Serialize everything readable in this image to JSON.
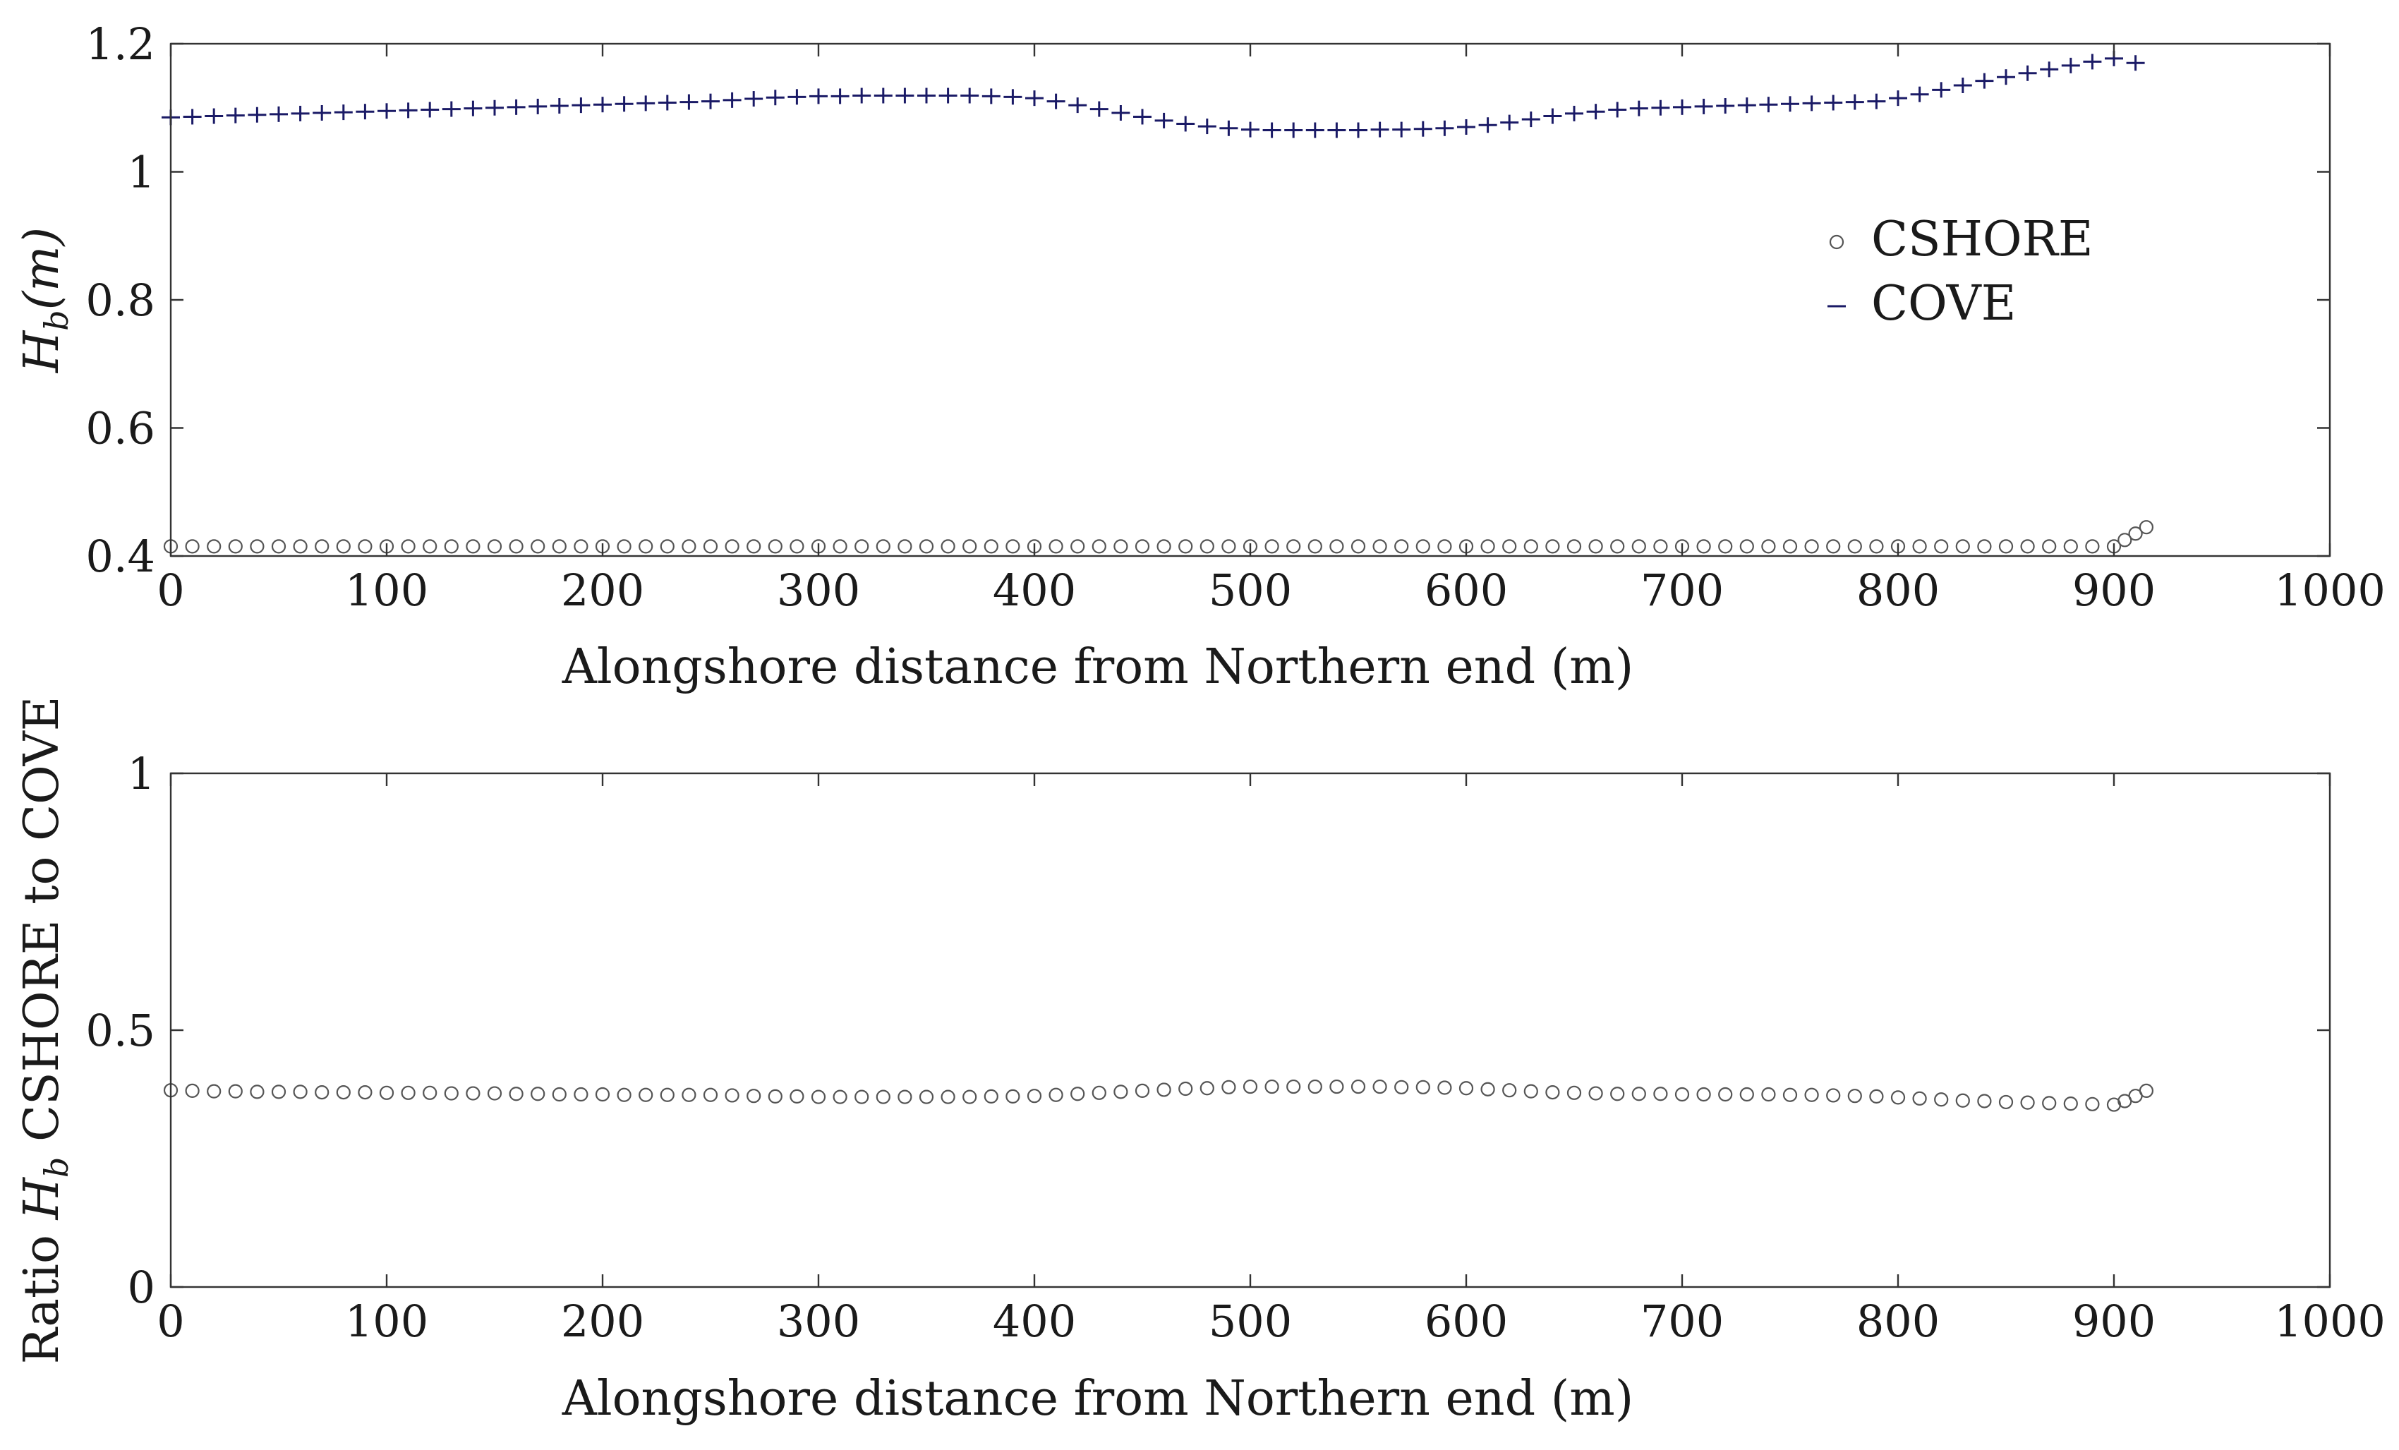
{
  "chart_data": [
    {
      "type": "scatter",
      "xlabel": "Alongshore distance from Northern end (m)",
      "ylabel": {
        "symbol": "H",
        "sub": "b",
        "unit": "(m)"
      },
      "xlim": [
        0,
        1000
      ],
      "ylim": [
        0.4,
        1.2
      ],
      "xticks": [
        0,
        100,
        200,
        300,
        400,
        500,
        600,
        700,
        800,
        900,
        1000
      ],
      "yticks": [
        0.4,
        0.6,
        0.8,
        1.0,
        1.2
      ],
      "xtick_labels": [
        "0",
        "100",
        "200",
        "300",
        "400",
        "500",
        "600",
        "700",
        "800",
        "900",
        "1000"
      ],
      "ytick_labels": [
        "0.4",
        "0.6",
        "0.8",
        "1",
        "1.2"
      ],
      "legend": {
        "placement": "upper-right",
        "entries": [
          "CSHORE",
          "COVE"
        ]
      },
      "grid": false,
      "series": [
        {
          "name": "CSHORE",
          "marker": "circle",
          "color": "#555555",
          "x": [
            0,
            10,
            20,
            30,
            40,
            50,
            60,
            70,
            80,
            90,
            100,
            110,
            120,
            130,
            140,
            150,
            160,
            170,
            180,
            190,
            200,
            210,
            220,
            230,
            240,
            250,
            260,
            270,
            280,
            290,
            300,
            310,
            320,
            330,
            340,
            350,
            360,
            370,
            380,
            390,
            400,
            410,
            420,
            430,
            440,
            450,
            460,
            470,
            480,
            490,
            500,
            510,
            520,
            530,
            540,
            550,
            560,
            570,
            580,
            590,
            600,
            610,
            620,
            630,
            640,
            650,
            660,
            670,
            680,
            690,
            700,
            710,
            720,
            730,
            740,
            750,
            760,
            770,
            780,
            790,
            800,
            810,
            820,
            830,
            840,
            850,
            860,
            870,
            880,
            890,
            900,
            905,
            910,
            915
          ],
          "y": [
            0.415,
            0.415,
            0.415,
            0.415,
            0.415,
            0.415,
            0.415,
            0.415,
            0.415,
            0.415,
            0.415,
            0.415,
            0.415,
            0.415,
            0.415,
            0.415,
            0.415,
            0.415,
            0.415,
            0.415,
            0.415,
            0.415,
            0.415,
            0.415,
            0.415,
            0.415,
            0.415,
            0.415,
            0.415,
            0.415,
            0.415,
            0.415,
            0.415,
            0.415,
            0.415,
            0.415,
            0.415,
            0.415,
            0.415,
            0.415,
            0.415,
            0.415,
            0.415,
            0.415,
            0.415,
            0.415,
            0.415,
            0.415,
            0.415,
            0.415,
            0.415,
            0.415,
            0.415,
            0.415,
            0.415,
            0.415,
            0.415,
            0.415,
            0.415,
            0.415,
            0.415,
            0.415,
            0.415,
            0.415,
            0.415,
            0.415,
            0.415,
            0.415,
            0.415,
            0.415,
            0.415,
            0.415,
            0.415,
            0.415,
            0.415,
            0.415,
            0.415,
            0.415,
            0.415,
            0.415,
            0.415,
            0.415,
            0.415,
            0.415,
            0.415,
            0.415,
            0.415,
            0.415,
            0.415,
            0.415,
            0.415,
            0.425,
            0.435,
            0.445
          ]
        },
        {
          "name": "COVE",
          "marker": "plus",
          "color": "#1a1a66",
          "x": [
            0,
            10,
            20,
            30,
            40,
            50,
            60,
            70,
            80,
            90,
            100,
            110,
            120,
            130,
            140,
            150,
            160,
            170,
            180,
            190,
            200,
            210,
            220,
            230,
            240,
            250,
            260,
            270,
            280,
            290,
            300,
            310,
            320,
            330,
            340,
            350,
            360,
            370,
            380,
            390,
            400,
            410,
            420,
            430,
            440,
            450,
            460,
            470,
            480,
            490,
            500,
            510,
            520,
            530,
            540,
            550,
            560,
            570,
            580,
            590,
            600,
            610,
            620,
            630,
            640,
            650,
            660,
            670,
            680,
            690,
            700,
            710,
            720,
            730,
            740,
            750,
            760,
            770,
            780,
            790,
            800,
            810,
            820,
            830,
            840,
            850,
            860,
            870,
            880,
            890,
            900,
            910
          ],
          "y": [
            1.085,
            1.086,
            1.087,
            1.088,
            1.089,
            1.09,
            1.091,
            1.092,
            1.093,
            1.094,
            1.095,
            1.096,
            1.097,
            1.098,
            1.099,
            1.1,
            1.101,
            1.102,
            1.103,
            1.104,
            1.105,
            1.106,
            1.107,
            1.108,
            1.109,
            1.11,
            1.112,
            1.114,
            1.116,
            1.117,
            1.118,
            1.118,
            1.119,
            1.119,
            1.119,
            1.119,
            1.119,
            1.119,
            1.118,
            1.117,
            1.115,
            1.11,
            1.104,
            1.098,
            1.092,
            1.086,
            1.08,
            1.075,
            1.071,
            1.068,
            1.066,
            1.065,
            1.065,
            1.065,
            1.065,
            1.065,
            1.066,
            1.066,
            1.067,
            1.068,
            1.07,
            1.073,
            1.077,
            1.082,
            1.087,
            1.091,
            1.094,
            1.097,
            1.099,
            1.1,
            1.101,
            1.102,
            1.103,
            1.104,
            1.105,
            1.106,
            1.107,
            1.108,
            1.109,
            1.11,
            1.115,
            1.121,
            1.128,
            1.135,
            1.142,
            1.148,
            1.154,
            1.16,
            1.166,
            1.172,
            1.177,
            1.17
          ]
        }
      ]
    },
    {
      "type": "scatter",
      "xlabel": "Alongshore distance from Northern end (m)",
      "ylabel": {
        "prefix": "Ratio",
        "symbol": "H",
        "sub": "b",
        "suffix": "CSHORE to COVE"
      },
      "xlim": [
        0,
        1000
      ],
      "ylim": [
        0,
        1
      ],
      "xticks": [
        0,
        100,
        200,
        300,
        400,
        500,
        600,
        700,
        800,
        900,
        1000
      ],
      "yticks": [
        0,
        0.5,
        1
      ],
      "xtick_labels": [
        "0",
        "100",
        "200",
        "300",
        "400",
        "500",
        "600",
        "700",
        "800",
        "900",
        "1000"
      ],
      "ytick_labels": [
        "0",
        "0.5",
        "1"
      ],
      "grid": false,
      "series": [
        {
          "marker": "circle",
          "color": "#555555",
          "x": [
            0,
            10,
            20,
            30,
            40,
            50,
            60,
            70,
            80,
            90,
            100,
            110,
            120,
            130,
            140,
            150,
            160,
            170,
            180,
            190,
            200,
            210,
            220,
            230,
            240,
            250,
            260,
            270,
            280,
            290,
            300,
            310,
            320,
            330,
            340,
            350,
            360,
            370,
            380,
            390,
            400,
            410,
            420,
            430,
            440,
            450,
            460,
            470,
            480,
            490,
            500,
            510,
            520,
            530,
            540,
            550,
            560,
            570,
            580,
            590,
            600,
            610,
            620,
            630,
            640,
            650,
            660,
            670,
            680,
            690,
            700,
            710,
            720,
            730,
            740,
            750,
            760,
            770,
            780,
            790,
            800,
            810,
            820,
            830,
            840,
            850,
            860,
            870,
            880,
            890,
            900,
            905,
            910,
            915
          ],
          "y": [
            0.383,
            0.382,
            0.381,
            0.381,
            0.38,
            0.38,
            0.38,
            0.379,
            0.379,
            0.379,
            0.378,
            0.378,
            0.378,
            0.377,
            0.377,
            0.377,
            0.376,
            0.376,
            0.375,
            0.375,
            0.375,
            0.374,
            0.374,
            0.374,
            0.374,
            0.374,
            0.373,
            0.372,
            0.371,
            0.371,
            0.37,
            0.37,
            0.37,
            0.37,
            0.37,
            0.37,
            0.37,
            0.37,
            0.371,
            0.371,
            0.372,
            0.374,
            0.376,
            0.378,
            0.38,
            0.382,
            0.384,
            0.386,
            0.387,
            0.389,
            0.39,
            0.39,
            0.39,
            0.39,
            0.39,
            0.39,
            0.39,
            0.389,
            0.389,
            0.388,
            0.387,
            0.385,
            0.383,
            0.381,
            0.379,
            0.378,
            0.377,
            0.376,
            0.376,
            0.376,
            0.375,
            0.375,
            0.375,
            0.375,
            0.375,
            0.374,
            0.374,
            0.373,
            0.372,
            0.371,
            0.369,
            0.367,
            0.365,
            0.363,
            0.362,
            0.36,
            0.359,
            0.358,
            0.357,
            0.356,
            0.355,
            0.362,
            0.372,
            0.382
          ]
        }
      ]
    }
  ]
}
